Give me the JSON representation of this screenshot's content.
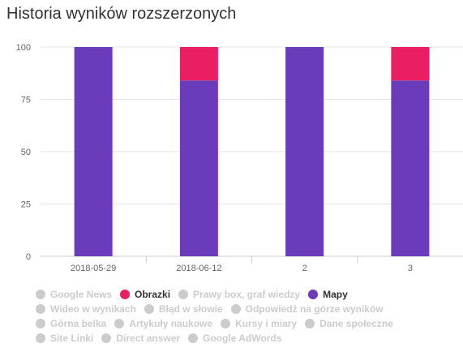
{
  "title": "Historia wyników rozszerzonych",
  "chart_data": {
    "type": "bar",
    "stacked": true,
    "categories": [
      "2018-05-29",
      "2018-06-12",
      "2",
      "3"
    ],
    "ylim": [
      0,
      100
    ],
    "yticks": [
      0,
      25,
      50,
      75,
      100
    ],
    "grid": true,
    "legend_position": "bottom",
    "series": [
      {
        "name": "Mapy",
        "color": "#6a3bba",
        "values": [
          100,
          84,
          100,
          84
        ]
      },
      {
        "name": "Obrazki",
        "color": "#e91e63",
        "values": [
          0,
          16,
          0,
          16
        ]
      }
    ]
  },
  "legend": {
    "rows": [
      [
        {
          "label": "Google News",
          "active": false,
          "color": "#cccccc"
        },
        {
          "label": "Obrazki",
          "active": true,
          "color": "#e91e63"
        },
        {
          "label": "Prawy box, graf wiedzy",
          "active": false,
          "color": "#cccccc"
        },
        {
          "label": "Mapy",
          "active": true,
          "color": "#6a3bba"
        }
      ],
      [
        {
          "label": "Wideo w wynikach",
          "active": false,
          "color": "#cccccc"
        },
        {
          "label": "Błąd w słowie",
          "active": false,
          "color": "#cccccc"
        },
        {
          "label": "Odpowiedź na górze wyników",
          "active": false,
          "color": "#cccccc"
        }
      ],
      [
        {
          "label": "Górna belka",
          "active": false,
          "color": "#cccccc"
        },
        {
          "label": "Artykuły naukowe",
          "active": false,
          "color": "#cccccc"
        },
        {
          "label": "Kursy i miary",
          "active": false,
          "color": "#cccccc"
        },
        {
          "label": "Dane społeczne",
          "active": false,
          "color": "#cccccc"
        }
      ],
      [
        {
          "label": "Site Linki",
          "active": false,
          "color": "#cccccc"
        },
        {
          "label": "Direct answer",
          "active": false,
          "color": "#cccccc"
        },
        {
          "label": "Google AdWords",
          "active": false,
          "color": "#cccccc"
        }
      ]
    ]
  }
}
